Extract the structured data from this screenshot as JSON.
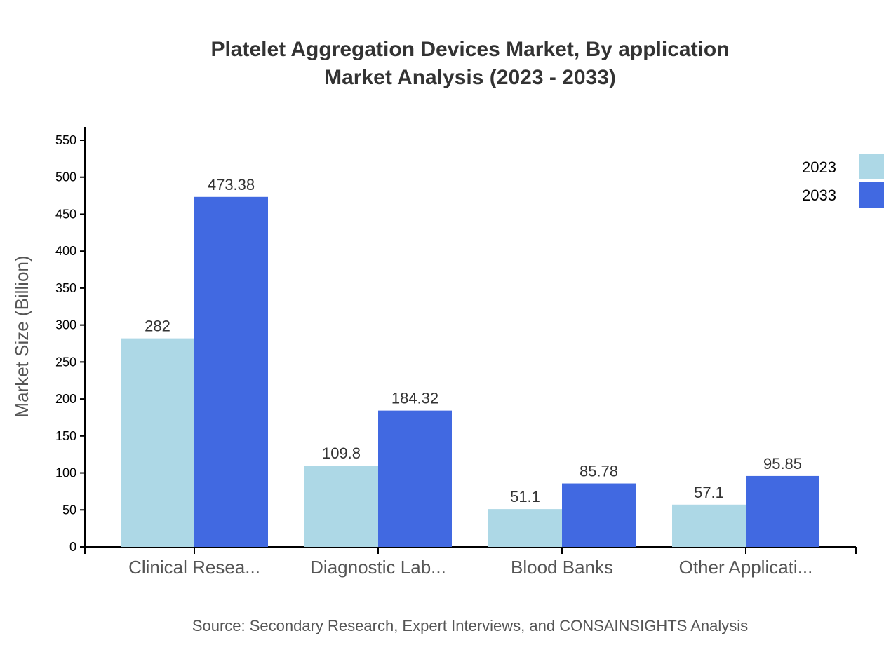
{
  "chart_data": {
    "type": "bar",
    "title": "Platelet Aggregation Devices Market, By application",
    "subtitle": "Market Analysis (2023 - 2033)",
    "xlabel": "",
    "ylabel": "Market Size (Billion)",
    "ylim": [
      0,
      568
    ],
    "yticks": [
      0,
      50,
      100,
      150,
      200,
      250,
      300,
      350,
      400,
      450,
      500,
      550
    ],
    "categories": [
      "Clinical Resea...",
      "Diagnostic Lab...",
      "Blood Banks",
      "Other Applicati..."
    ],
    "series": [
      {
        "name": "2023",
        "color": "#add8e6",
        "values": [
          282,
          109.8,
          51.1,
          57.1
        ]
      },
      {
        "name": "2033",
        "color": "#4169e1",
        "values": [
          473.38,
          184.32,
          85.78,
          95.85
        ]
      }
    ],
    "legend_position": "top-right",
    "grid": false,
    "source": "Source: Secondary Research, Expert Interviews, and CONSAINSIGHTS Analysis"
  }
}
